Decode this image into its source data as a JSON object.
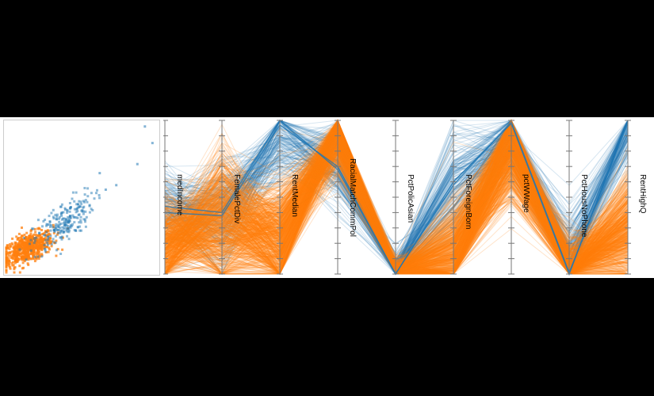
{
  "colors": {
    "series_a": "#1f77b4",
    "series_b": "#ff7f0e",
    "axis": "#777777",
    "frame": "#cccccc",
    "background": "#ffffff",
    "page": "#000000"
  },
  "chart_data": [
    {
      "type": "scatter",
      "title": "",
      "xlabel": "",
      "ylabel": "",
      "xlim": [
        0,
        1
      ],
      "ylim": [
        0,
        1
      ],
      "grid": false,
      "series": [
        {
          "color": "#ff7f0e",
          "cluster": {
            "cx": 0.14,
            "cy": 0.16,
            "sx": 0.085,
            "sy": 0.055,
            "n": 650,
            "corr": 0.55
          }
        },
        {
          "color": "#1f77b4",
          "cluster": {
            "cx": 0.38,
            "cy": 0.33,
            "sx": 0.1,
            "sy": 0.095,
            "n": 230,
            "corr": 0.7
          },
          "extra_points": [
            [
              0.92,
              0.97
            ],
            [
              0.97,
              0.86
            ],
            [
              0.87,
              0.72
            ],
            [
              0.73,
              0.58
            ],
            [
              0.62,
              0.66
            ],
            [
              0.66,
              0.55
            ]
          ]
        }
      ]
    },
    {
      "type": "line",
      "subtype": "parallel-coordinates",
      "dimensions": [
        "medIncome",
        "FemalePctDiv",
        "RentMedian",
        "RacialMatchCommPol",
        "PctPolicAsian",
        "PctForeignBorn",
        "pctWWage",
        "PctHousNoPhone",
        "RentHighQ"
      ],
      "ylim": [
        0,
        1
      ],
      "grid": false,
      "series": [
        {
          "color": "#1f77b4",
          "profiles": [
            [
              0.42,
              0.35,
              0.82,
              0.7,
              0.02,
              0.55,
              0.88,
              0.18,
              0.96
            ],
            [
              0.45,
              0.42,
              0.9,
              0.71,
              0.02,
              0.62,
              0.9,
              0.05,
              0.97
            ],
            [
              0.4,
              0.3,
              0.96,
              0.7,
              0.01,
              0.48,
              0.85,
              0.1,
              0.99
            ],
            [
              0.48,
              0.45,
              0.75,
              0.72,
              0.03,
              0.7,
              0.92,
              0.04,
              0.93
            ]
          ],
          "spread": [
            0.22,
            0.28,
            0.22,
            0.24,
            0.12,
            0.28,
            0.2,
            0.28,
            0.25
          ]
        },
        {
          "color": "#ff7f0e",
          "profiles": [
            [
              0.2,
              0.3,
              0.18,
              0.95,
              0.0,
              0.05,
              0.82,
              0.0,
              0.25
            ],
            [
              0.15,
              0.4,
              0.3,
              0.9,
              0.01,
              0.12,
              0.88,
              0.02,
              0.3
            ],
            [
              0.28,
              0.25,
              0.12,
              0.98,
              0.0,
              0.08,
              0.75,
              0.01,
              0.2
            ],
            [
              0.12,
              0.45,
              0.35,
              0.85,
              0.02,
              0.2,
              0.9,
              0.0,
              0.35
            ]
          ],
          "spread": [
            0.25,
            0.35,
            0.3,
            0.2,
            0.08,
            0.28,
            0.3,
            0.2,
            0.3
          ]
        }
      ],
      "highlights": [
        {
          "color": "#1f77b4",
          "values": [
            0.44,
            0.4,
            1.0,
            0.68,
            0.0,
            0.6,
            0.98,
            0.0,
            1.0
          ]
        },
        {
          "color": "#1f77b4",
          "values": [
            0.4,
            0.38,
            0.97,
            0.7,
            0.0,
            0.58,
            0.99,
            0.01,
            0.98
          ]
        }
      ]
    }
  ]
}
